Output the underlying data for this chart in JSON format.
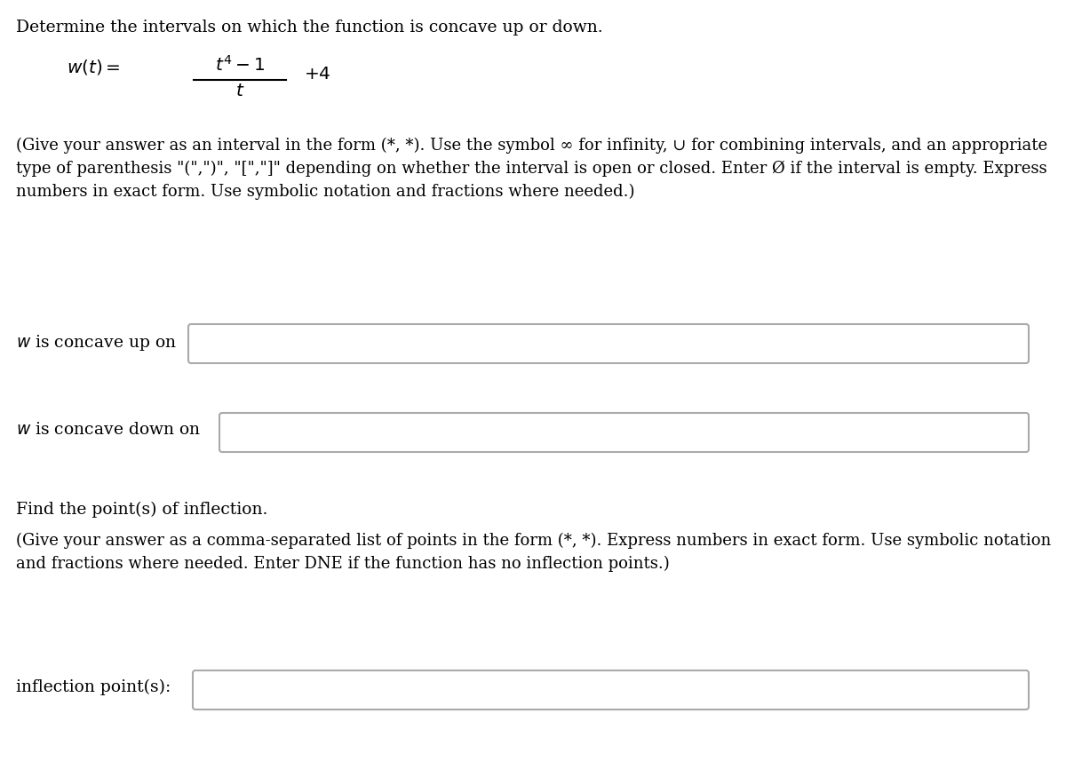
{
  "background_color": "#ffffff",
  "text_color": "#000000",
  "title_text": "Determine the intervals on which the function is concave up or down.",
  "label1": "$w$ is concave up on",
  "label2": "$w$ is concave down on",
  "label3": "inflection point(s):",
  "section2_title": "Find the point(s) of inflection.",
  "instructions1_line1": "(Give your answer as an interval in the form (*, *). Use the symbol ∞ for infinity, ∪ for combining intervals, and an appropriate",
  "instructions1_line2": "type of parenthesis \"(\",\")\", \"[\",\"]\" depending on whether the interval is open or closed. Enter Ø if the interval is empty. Express",
  "instructions1_line3": "numbers in exact form. Use symbolic notation and fractions where needed.)",
  "instructions2_line1": "(Give your answer as a comma-separated list of points in the form (*, *). Express numbers in exact form. Use symbolic notation",
  "instructions2_line2": "and fractions where needed. Enter DNE if the function has no inflection points.)",
  "font_size": 13.5,
  "box_edge_color": "#aaaaaa",
  "box_face_color": "#ffffff"
}
